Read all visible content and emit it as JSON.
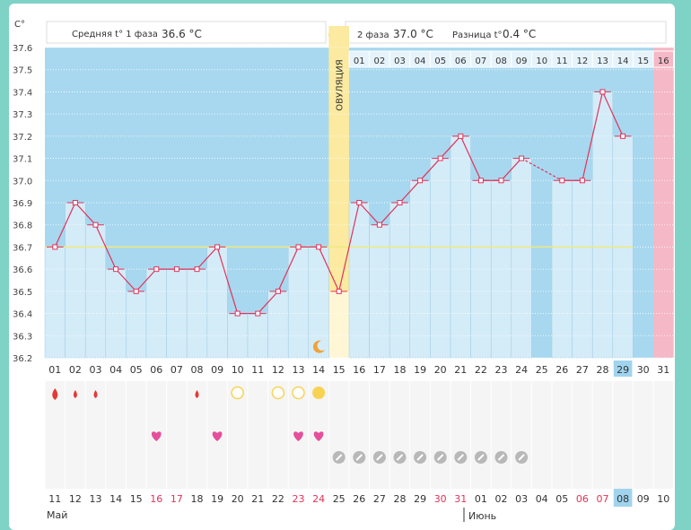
{
  "chart_data": {
    "type": "line",
    "yunit": "C°",
    "ylim": [
      36.2,
      37.6
    ],
    "yticks": [
      "37.6",
      "37.5",
      "37.4",
      "37.3",
      "37.2",
      "37.1",
      "37.0",
      "36.9",
      "36.8",
      "36.7",
      "36.6",
      "36.5",
      "36.4",
      "36.3",
      "36.2"
    ],
    "phase1_label": "Средняя t° 1 фаза",
    "phase1_value": "36.6 °C",
    "phase2_label": "2 фаза",
    "phase2_value": "37.0 °C",
    "diff_label": "Разница t°",
    "diff_value": "0.4 °C",
    "ovulation_label": "ОВУЛЯЦИЯ",
    "ovulation_day": 15,
    "baseline": 36.7,
    "cycle_days": [
      "01",
      "02",
      "03",
      "04",
      "05",
      "06",
      "07",
      "08",
      "09",
      "10",
      "11",
      "12",
      "13",
      "14",
      "15",
      "16",
      "17",
      "18",
      "19",
      "20",
      "21",
      "22",
      "23",
      "24",
      "25",
      "26",
      "27",
      "28",
      "29",
      "30",
      "31"
    ],
    "phase2_days": [
      "01",
      "02",
      "03",
      "04",
      "05",
      "06",
      "07",
      "08",
      "09",
      "10",
      "11",
      "12",
      "13",
      "14",
      "15",
      "16"
    ],
    "temperatures": [
      36.7,
      36.9,
      36.8,
      36.6,
      36.5,
      36.6,
      36.6,
      36.6,
      36.7,
      36.4,
      36.4,
      36.5,
      36.7,
      36.7,
      36.5,
      36.9,
      36.8,
      36.9,
      37.0,
      37.1,
      37.2,
      37.0,
      37.0,
      37.1,
      null,
      37.0,
      37.0,
      37.4,
      37.2,
      null,
      null
    ],
    "today_cycle_day": "29",
    "bleeding_days": [
      1,
      2,
      3,
      8
    ],
    "bleeding_size": [
      3,
      2,
      2,
      2
    ],
    "mucus_empty_days": [
      10,
      12,
      13
    ],
    "mucus_full_days": [
      14
    ],
    "heart_days": [
      6,
      9,
      13,
      14
    ],
    "pill_days": [
      15,
      16,
      17,
      18,
      19,
      20,
      21,
      22,
      23,
      24
    ],
    "calendar_dates": [
      "11",
      "12",
      "13",
      "14",
      "15",
      "16",
      "17",
      "18",
      "19",
      "20",
      "21",
      "22",
      "23",
      "24",
      "25",
      "26",
      "27",
      "28",
      "29",
      "30",
      "31",
      "01",
      "02",
      "03",
      "04",
      "05",
      "06",
      "07",
      "08",
      "09",
      "10"
    ],
    "weekend_date_indices": [
      5,
      6,
      12,
      13,
      19,
      20,
      26,
      27
    ],
    "today_date": "08",
    "month1": "Май",
    "month2": "Июнь",
    "colors": {
      "phase_band": "#a8d8ef",
      "bar": "#d4ecf8",
      "ovulation": "#fbeaa0",
      "line": "#e0335a",
      "baseline": "#f0e880",
      "pink_day": "#f5b8c6",
      "weekend": "#e0335a",
      "today": "#a0d4ee",
      "blood": "#e53935",
      "sun": "#f7d354",
      "heart": "#e54f9b",
      "pill": "#b8b8b8"
    }
  }
}
